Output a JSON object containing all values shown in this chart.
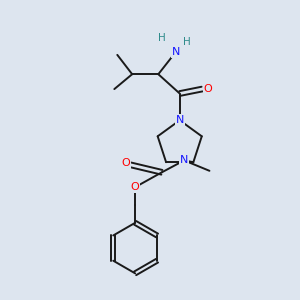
{
  "bg_color": "#dde5ef",
  "bond_color": "#1a1a1a",
  "atom_colors": {
    "N": "#1414ff",
    "O": "#ff0000",
    "NH": "#2e8b8b",
    "C": "#1a1a1a"
  },
  "figsize": [
    3.0,
    3.0
  ],
  "dpi": 100
}
